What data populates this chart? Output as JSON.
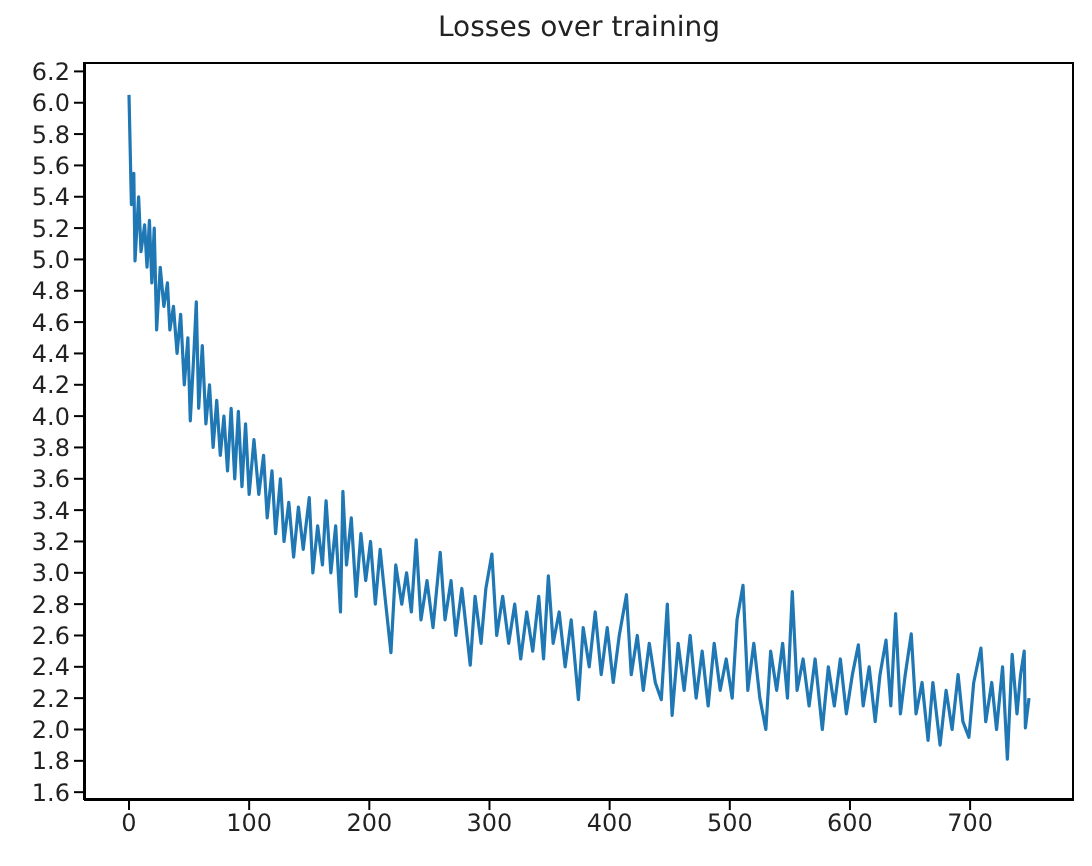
{
  "chart_data": {
    "type": "line",
    "title": "Losses over training",
    "x": [
      0,
      2,
      4,
      5,
      8,
      10,
      13,
      15,
      17,
      19,
      21,
      23,
      26,
      29,
      32,
      34,
      37,
      40,
      43,
      46,
      49,
      51,
      54,
      56,
      58,
      61,
      64,
      67,
      70,
      73,
      76,
      79,
      82,
      85,
      88,
      91,
      94,
      97,
      100,
      104,
      108,
      112,
      115,
      119,
      122,
      126,
      129,
      133,
      137,
      141,
      145,
      150,
      153,
      157,
      161,
      164,
      168,
      172,
      176,
      178,
      181,
      185,
      189,
      193,
      197,
      201,
      205,
      209,
      213,
      218,
      222,
      227,
      231,
      235,
      239,
      243,
      248,
      253,
      259,
      263,
      268,
      272,
      277,
      284,
      288,
      293,
      297,
      302,
      306,
      311,
      316,
      321,
      326,
      331,
      336,
      341,
      345,
      349,
      353,
      358,
      363,
      368,
      374,
      378,
      383,
      388,
      393,
      398,
      403,
      408,
      414,
      418,
      423,
      428,
      433,
      438,
      443,
      448,
      452,
      457,
      462,
      467,
      472,
      477,
      482,
      487,
      492,
      497,
      502,
      506,
      511,
      515,
      520,
      525,
      530,
      534,
      539,
      544,
      548,
      552,
      556,
      561,
      566,
      571,
      577,
      582,
      587,
      592,
      597,
      602,
      607,
      611,
      616,
      621,
      625,
      630,
      634,
      638,
      642,
      646,
      651,
      655,
      660,
      665,
      669,
      675,
      680,
      685,
      690,
      694,
      699,
      703,
      709,
      713,
      718,
      722,
      727,
      731,
      735,
      739,
      742,
      745,
      746,
      749
    ],
    "series": [
      {
        "color": "#1f77b4",
        "values": [
          6.05,
          5.35,
          5.55,
          4.99,
          5.4,
          5.05,
          5.22,
          4.95,
          5.25,
          4.85,
          5.2,
          4.55,
          4.95,
          4.7,
          4.85,
          4.55,
          4.7,
          4.4,
          4.65,
          4.2,
          4.5,
          3.97,
          4.4,
          4.73,
          4.05,
          4.45,
          3.95,
          4.2,
          3.8,
          4.1,
          3.75,
          4.0,
          3.65,
          4.05,
          3.6,
          4.03,
          3.55,
          3.95,
          3.5,
          3.85,
          3.5,
          3.75,
          3.35,
          3.65,
          3.25,
          3.6,
          3.2,
          3.45,
          3.1,
          3.42,
          3.15,
          3.48,
          3.0,
          3.3,
          3.05,
          3.46,
          3.0,
          3.3,
          2.75,
          3.52,
          3.05,
          3.35,
          2.85,
          3.25,
          2.95,
          3.2,
          2.8,
          3.15,
          2.85,
          2.49,
          3.05,
          2.8,
          3.0,
          2.75,
          3.21,
          2.7,
          2.95,
          2.65,
          3.13,
          2.7,
          2.95,
          2.6,
          2.9,
          2.41,
          2.85,
          2.55,
          2.9,
          3.12,
          2.6,
          2.85,
          2.55,
          2.8,
          2.45,
          2.75,
          2.5,
          2.85,
          2.45,
          2.98,
          2.55,
          2.75,
          2.4,
          2.7,
          2.19,
          2.65,
          2.4,
          2.75,
          2.35,
          2.65,
          2.3,
          2.6,
          2.86,
          2.35,
          2.6,
          2.25,
          2.55,
          2.3,
          2.19,
          2.8,
          2.09,
          2.55,
          2.25,
          2.6,
          2.2,
          2.5,
          2.15,
          2.55,
          2.25,
          2.45,
          2.2,
          2.7,
          2.92,
          2.25,
          2.55,
          2.2,
          2.0,
          2.5,
          2.25,
          2.55,
          2.2,
          2.88,
          2.25,
          2.45,
          2.15,
          2.45,
          2.0,
          2.4,
          2.15,
          2.45,
          2.1,
          2.35,
          2.54,
          2.15,
          2.4,
          2.05,
          2.35,
          2.57,
          2.15,
          2.74,
          2.1,
          2.35,
          2.61,
          2.1,
          2.3,
          1.93,
          2.3,
          1.9,
          2.25,
          2.0,
          2.35,
          2.05,
          1.95,
          2.3,
          2.52,
          2.05,
          2.3,
          2.0,
          2.4,
          1.81,
          2.48,
          2.1,
          2.35,
          2.5,
          2.01,
          2.2
        ]
      }
    ],
    "xlim": [
      -37.45,
      786.45
    ],
    "xticks": [
      0,
      100,
      200,
      300,
      400,
      500,
      600,
      700
    ],
    "ylim": [
      1.55,
      6.26
    ],
    "yticks": [
      1.6,
      1.8,
      {
        "value": 2,
        "label": "2.0"
      },
      2.2,
      2.4,
      2.6,
      2.8,
      {
        "value": 3,
        "label": "3.0"
      },
      3.2,
      3.4,
      3.6,
      3.8,
      {
        "value": 4,
        "label": "4.0"
      },
      4.2,
      4.4,
      4.6,
      4.8,
      {
        "value": 5,
        "label": "5.0"
      },
      5.2,
      5.4,
      5.6,
      5.8,
      {
        "value": 6,
        "label": "6.0"
      },
      6.2
    ]
  }
}
